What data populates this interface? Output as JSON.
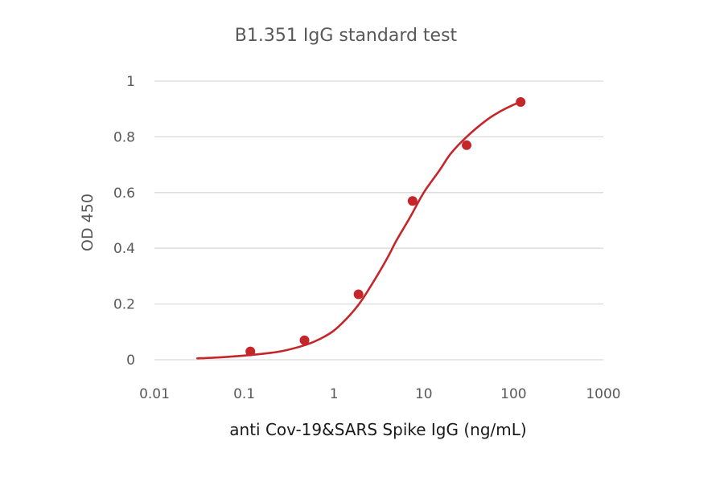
{
  "chart_data": {
    "type": "scatter",
    "title": "B1.351 IgG standard test",
    "xlabel": "anti Cov-19&SARS Spike IgG (ng/mL)",
    "ylabel": "OD 450",
    "x_scale": "log",
    "xlim": [
      0.01,
      1000
    ],
    "ylim": [
      0,
      1
    ],
    "x_ticks": [
      "0.01",
      "0.1",
      "1",
      "10",
      "100",
      "1000"
    ],
    "x_tick_values": [
      0.01,
      0.1,
      1,
      10,
      100,
      1000
    ],
    "y_ticks": [
      "0",
      "0.2",
      "0.4",
      "0.6",
      "0.8",
      "1"
    ],
    "y_tick_values": [
      0,
      0.2,
      0.4,
      0.6,
      0.8,
      1
    ],
    "grid": "horizontal",
    "legend": "none",
    "points": {
      "x": [
        0.117,
        0.469,
        1.875,
        7.5,
        30,
        120
      ],
      "y": [
        0.03,
        0.07,
        0.235,
        0.57,
        0.77,
        0.925
      ]
    },
    "fit": {
      "x": [
        0.03,
        0.05,
        0.1,
        0.2,
        0.3,
        0.5,
        0.7,
        1,
        1.5,
        2,
        3,
        4,
        5,
        7,
        10,
        15,
        20,
        30,
        50,
        70,
        100,
        120
      ],
      "y": [
        0.005,
        0.008,
        0.015,
        0.025,
        0.035,
        0.055,
        0.075,
        0.105,
        0.16,
        0.21,
        0.3,
        0.37,
        0.43,
        0.51,
        0.6,
        0.68,
        0.74,
        0.8,
        0.86,
        0.89,
        0.915,
        0.925
      ]
    },
    "colors": {
      "series": "#c4262a",
      "grid": "#d9d9d9",
      "axis_text": "#595959"
    }
  }
}
